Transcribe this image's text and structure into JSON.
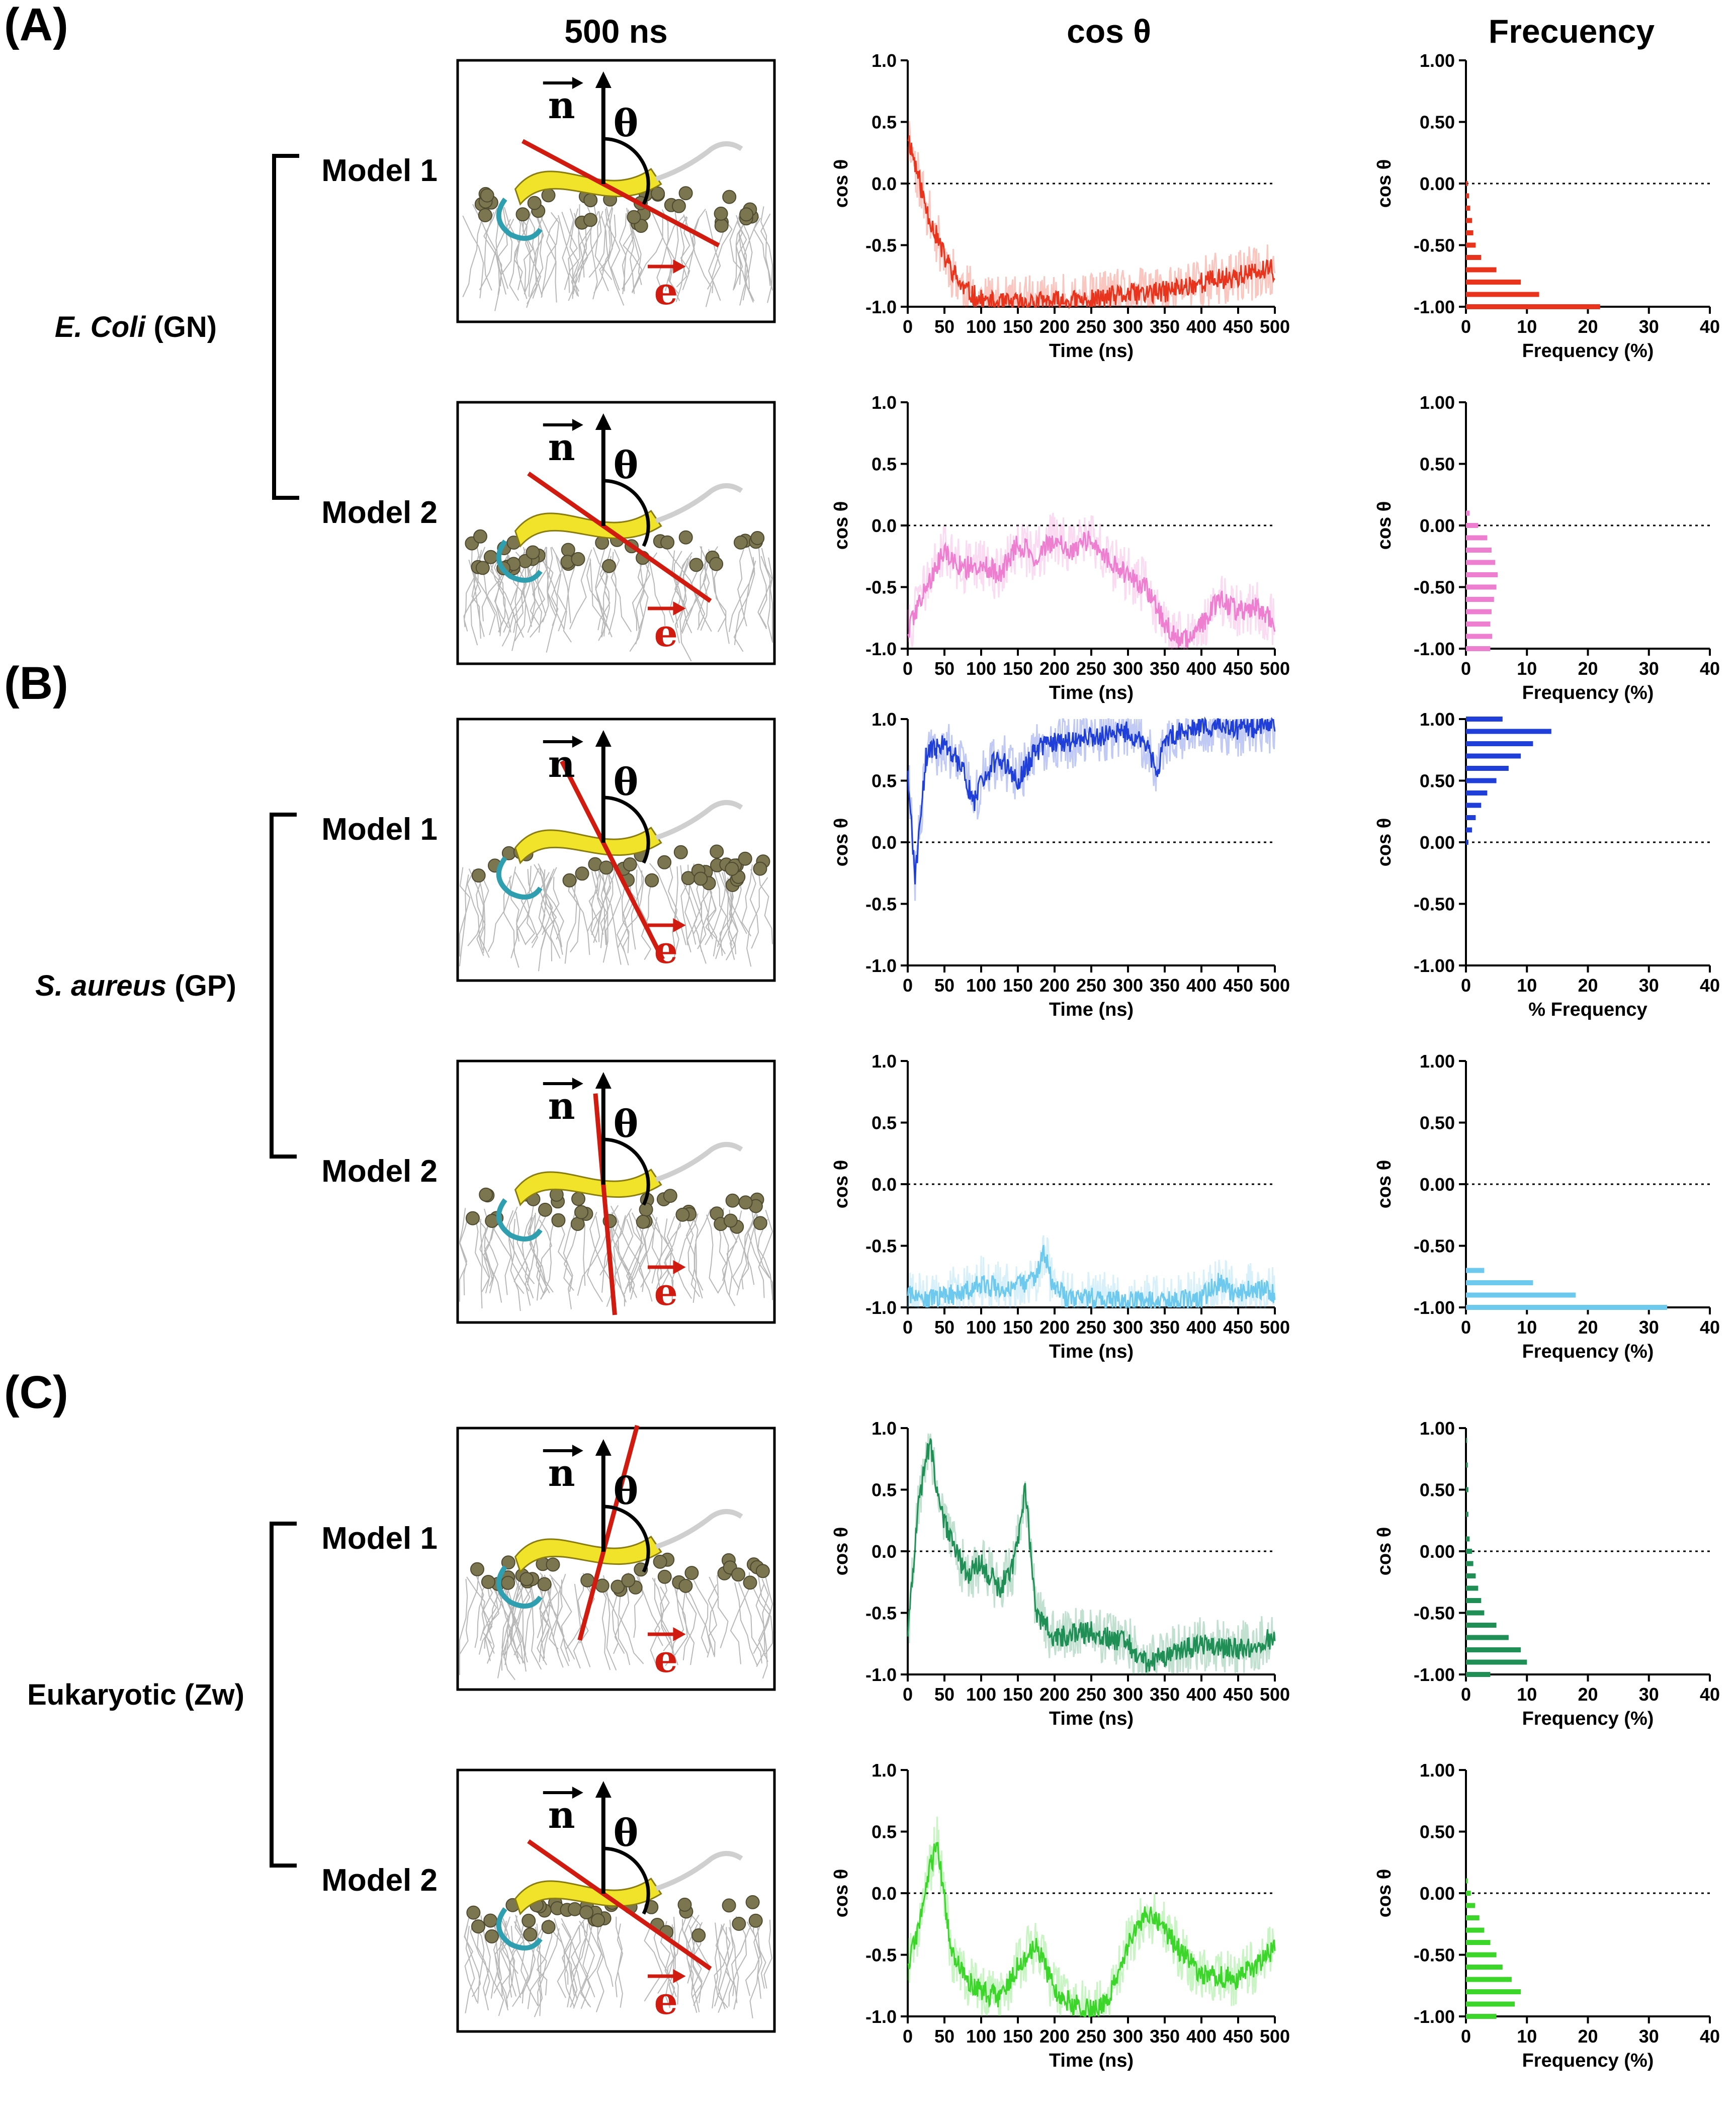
{
  "figure": {
    "column_titles": [
      "500 ns",
      "cos θ",
      "Frecuency"
    ],
    "symbols": {
      "n": "n",
      "e": "e",
      "theta": "θ"
    },
    "colors": {
      "red": "#e8341c",
      "pink": "#ee7fd0",
      "blue": "#1f3fd8",
      "lightblue": "#6ec9ee",
      "darkgreen": "#1f8f55",
      "green": "#3cd62a"
    }
  },
  "sections": [
    {
      "label": "(A)",
      "organism": {
        "italic": "E. Coli",
        "rest": " (GN)",
        "full": "E. Coli (GN)"
      },
      "models": [
        {
          "name": "Model 1",
          "color": "#e8341c"
        },
        {
          "name": "Model 2",
          "color": "#ee7fd0"
        }
      ]
    },
    {
      "label": "(B)",
      "organism": {
        "italic": "S. aureus",
        "rest": " (GP)",
        "full": "S. aureus (GP)"
      },
      "models": [
        {
          "name": "Model 1",
          "color": "#1f3fd8"
        },
        {
          "name": "Model 2",
          "color": "#6ec9ee"
        }
      ]
    },
    {
      "label": "(C)",
      "organism": {
        "italic": "",
        "rest": "Eukaryotic (Zw)",
        "full": "Eukaryotic (Zw)"
      },
      "models": [
        {
          "name": "Model 1",
          "color": "#1f8f55"
        },
        {
          "name": "Model 2",
          "color": "#3cd62a"
        }
      ]
    }
  ],
  "chart_data": [
    {
      "type": "line",
      "panel": "A-Model1-time",
      "color": "#e8341c",
      "xlabel": "Time (ns)",
      "ylabel": "cos θ",
      "xlim": [
        0,
        500
      ],
      "ylim": [
        -1,
        1
      ],
      "xticks": [
        0,
        50,
        100,
        150,
        200,
        250,
        300,
        350,
        400,
        450,
        500
      ],
      "yticks": [
        "1.0",
        "0.5",
        "0.0",
        "-0.5",
        "-1.0"
      ],
      "reference_line": 0,
      "x": [
        0,
        25,
        50,
        75,
        100,
        125,
        150,
        200,
        250,
        300,
        350,
        400,
        450,
        500
      ],
      "y": [
        0.4,
        -0.2,
        -0.6,
        -0.85,
        -0.95,
        -0.98,
        -0.97,
        -0.96,
        -0.95,
        -0.9,
        -0.88,
        -0.8,
        -0.75,
        -0.7
      ]
    },
    {
      "type": "bar",
      "orientation": "horizontal",
      "panel": "A-Model1-freq",
      "color": "#e8341c",
      "xlabel": "Frequency (%)",
      "ylabel": "cos θ",
      "xlim": [
        0,
        40
      ],
      "ylim": [
        -1,
        1
      ],
      "xticks": [
        0,
        10,
        20,
        30,
        40
      ],
      "yticks": [
        "1.00",
        "0.50",
        "0.00",
        "-0.50",
        "-1.00"
      ],
      "reference_line": 0,
      "categories": [
        0.0,
        -0.1,
        -0.2,
        -0.3,
        -0.4,
        -0.5,
        -0.6,
        -0.7,
        -0.8,
        -0.9,
        -1.0
      ],
      "values": [
        0.3,
        0.5,
        0.7,
        1.0,
        1.2,
        1.6,
        2.5,
        5,
        9,
        12,
        22
      ]
    },
    {
      "type": "line",
      "panel": "A-Model2-time",
      "color": "#ee7fd0",
      "xlabel": "Time (ns)",
      "ylabel": "cos θ",
      "xlim": [
        0,
        500
      ],
      "ylim": [
        -1,
        1
      ],
      "xticks": [
        0,
        50,
        100,
        150,
        200,
        250,
        300,
        350,
        400,
        450,
        500
      ],
      "yticks": [
        "1.0",
        "0.5",
        "0.0",
        "-0.5",
        "-1.0"
      ],
      "reference_line": 0,
      "x": [
        0,
        25,
        50,
        75,
        100,
        125,
        150,
        175,
        200,
        225,
        250,
        275,
        300,
        325,
        350,
        375,
        400,
        425,
        450,
        475,
        500
      ],
      "y": [
        -0.85,
        -0.5,
        -0.2,
        -0.35,
        -0.3,
        -0.4,
        -0.15,
        -0.25,
        -0.1,
        -0.2,
        -0.1,
        -0.3,
        -0.4,
        -0.5,
        -0.8,
        -0.95,
        -0.8,
        -0.6,
        -0.7,
        -0.65,
        -0.8
      ]
    },
    {
      "type": "bar",
      "orientation": "horizontal",
      "panel": "A-Model2-freq",
      "color": "#ee7fd0",
      "xlabel": "Frequency (%)",
      "ylabel": "cos θ",
      "xlim": [
        0,
        40
      ],
      "ylim": [
        -1,
        1
      ],
      "xticks": [
        0,
        10,
        20,
        30,
        40
      ],
      "yticks": [
        "1.00",
        "0.50",
        "0.00",
        "-0.50",
        "-1.00"
      ],
      "reference_line": 0,
      "categories": [
        0.1,
        0.0,
        -0.1,
        -0.2,
        -0.3,
        -0.4,
        -0.5,
        -0.6,
        -0.7,
        -0.8,
        -0.9,
        -1.0
      ],
      "values": [
        0.6,
        2,
        3.5,
        4.2,
        4.8,
        5.2,
        5,
        4.6,
        4.2,
        4,
        4.3,
        4
      ]
    },
    {
      "type": "line",
      "panel": "B-Model1-time",
      "color": "#1f3fd8",
      "xlabel": "Time (ns)",
      "ylabel": "cos θ",
      "xlim": [
        0,
        500
      ],
      "ylim": [
        -1,
        1
      ],
      "xticks": [
        0,
        50,
        100,
        150,
        200,
        250,
        300,
        350,
        400,
        450,
        500
      ],
      "yticks": [
        "1.0",
        "0.5",
        "0.0",
        "-0.5",
        "-1.0"
      ],
      "reference_line": 0,
      "x": [
        0,
        10,
        25,
        50,
        75,
        90,
        100,
        125,
        150,
        175,
        200,
        250,
        300,
        325,
        340,
        350,
        375,
        400,
        450,
        500
      ],
      "y": [
        0.6,
        -0.3,
        0.7,
        0.8,
        0.6,
        0.3,
        0.5,
        0.7,
        0.5,
        0.75,
        0.8,
        0.85,
        0.9,
        0.8,
        0.55,
        0.85,
        0.9,
        0.95,
        0.92,
        0.95
      ]
    },
    {
      "type": "bar",
      "orientation": "horizontal",
      "panel": "B-Model1-freq",
      "color": "#1f3fd8",
      "xlabel": "% Frequency",
      "ylabel": "cos θ",
      "xlim": [
        0,
        40
      ],
      "ylim": [
        -1,
        1
      ],
      "xticks": [
        0,
        10,
        20,
        30,
        40
      ],
      "yticks": [
        "1.00",
        "0.50",
        "0.00",
        "-0.50",
        "-1.00"
      ],
      "reference_line": 0,
      "categories": [
        1.0,
        0.9,
        0.8,
        0.7,
        0.6,
        0.5,
        0.4,
        0.3,
        0.2,
        0.1,
        0.0
      ],
      "values": [
        6,
        14,
        11,
        9,
        7,
        5,
        3.5,
        2.5,
        1.6,
        1,
        0.4
      ]
    },
    {
      "type": "line",
      "panel": "B-Model2-time",
      "color": "#6ec9ee",
      "xlabel": "Time (ns)",
      "ylabel": "cos θ",
      "xlim": [
        0,
        500
      ],
      "ylim": [
        -1,
        1
      ],
      "xticks": [
        0,
        50,
        100,
        150,
        200,
        250,
        300,
        350,
        400,
        450,
        500
      ],
      "yticks": [
        "1.0",
        "0.5",
        "0.0",
        "-0.5",
        "-1.0"
      ],
      "reference_line": 0,
      "x": [
        0,
        25,
        50,
        75,
        100,
        125,
        150,
        175,
        185,
        200,
        225,
        250,
        300,
        350,
        400,
        425,
        450,
        475,
        500
      ],
      "y": [
        -0.9,
        -0.95,
        -0.9,
        -0.88,
        -0.8,
        -0.85,
        -0.82,
        -0.75,
        -0.55,
        -0.85,
        -0.95,
        -0.93,
        -0.95,
        -0.96,
        -0.92,
        -0.8,
        -0.9,
        -0.85,
        -0.9
      ]
    },
    {
      "type": "bar",
      "orientation": "horizontal",
      "panel": "B-Model2-freq",
      "color": "#6ec9ee",
      "xlabel": "Frequency (%)",
      "ylabel": "cos θ",
      "xlim": [
        0,
        40
      ],
      "ylim": [
        -1,
        1
      ],
      "xticks": [
        0,
        10,
        20,
        30,
        40
      ],
      "yticks": [
        "1.00",
        "0.50",
        "0.00",
        "-0.50",
        "-1.00"
      ],
      "reference_line": 0,
      "categories": [
        -0.7,
        -0.8,
        -0.9,
        -1.0
      ],
      "values": [
        3,
        11,
        18,
        33
      ]
    },
    {
      "type": "line",
      "panel": "C-Model1-time",
      "color": "#1f8f55",
      "xlabel": "Time (ns)",
      "ylabel": "cos θ",
      "xlim": [
        0,
        500
      ],
      "ylim": [
        -1,
        1
      ],
      "xticks": [
        0,
        50,
        100,
        150,
        200,
        250,
        300,
        350,
        400,
        450,
        500
      ],
      "yticks": [
        "1.0",
        "0.5",
        "0.0",
        "-0.5",
        "-1.0"
      ],
      "reference_line": 0,
      "x": [
        0,
        15,
        30,
        45,
        60,
        80,
        100,
        125,
        145,
        160,
        175,
        200,
        250,
        300,
        325,
        350,
        375,
        400,
        450,
        500
      ],
      "y": [
        -0.7,
        0.4,
        0.9,
        0.3,
        0.1,
        -0.2,
        -0.1,
        -0.3,
        -0.1,
        0.5,
        -0.5,
        -0.7,
        -0.65,
        -0.75,
        -0.9,
        -0.85,
        -0.8,
        -0.75,
        -0.8,
        -0.7
      ]
    },
    {
      "type": "bar",
      "orientation": "horizontal",
      "panel": "C-Model1-freq",
      "color": "#1f8f55",
      "xlabel": "Frequency (%)",
      "ylabel": "cos θ",
      "xlim": [
        0,
        40
      ],
      "ylim": [
        -1,
        1
      ],
      "xticks": [
        0,
        10,
        20,
        30,
        40
      ],
      "yticks": [
        "1.00",
        "0.50",
        "0.00",
        "-0.50",
        "-1.00"
      ],
      "reference_line": 0,
      "categories": [
        0.9,
        0.7,
        0.5,
        0.3,
        0.1,
        0.0,
        -0.1,
        -0.2,
        -0.3,
        -0.4,
        -0.5,
        -0.6,
        -0.7,
        -0.8,
        -0.9,
        -1.0
      ],
      "values": [
        0.2,
        0.3,
        0.4,
        0.4,
        0.6,
        1,
        1.2,
        1.6,
        2,
        2.5,
        3,
        5,
        7,
        9,
        10,
        4
      ]
    },
    {
      "type": "line",
      "panel": "C-Model2-time",
      "color": "#3cd62a",
      "xlabel": "Time (ns)",
      "ylabel": "cos θ",
      "xlim": [
        0,
        500
      ],
      "ylim": [
        -1,
        1
      ],
      "xticks": [
        0,
        50,
        100,
        150,
        200,
        250,
        300,
        350,
        400,
        450,
        500
      ],
      "yticks": [
        "1.0",
        "0.5",
        "0.0",
        "-0.5",
        "-1.0"
      ],
      "reference_line": 0,
      "x": [
        0,
        15,
        30,
        40,
        60,
        80,
        100,
        125,
        150,
        175,
        200,
        225,
        250,
        275,
        300,
        325,
        350,
        375,
        400,
        450,
        500
      ],
      "y": [
        -0.6,
        -0.3,
        0.2,
        0.4,
        -0.5,
        -0.7,
        -0.8,
        -0.85,
        -0.6,
        -0.4,
        -0.8,
        -0.9,
        -0.95,
        -0.85,
        -0.4,
        -0.15,
        -0.3,
        -0.5,
        -0.65,
        -0.7,
        -0.45
      ]
    },
    {
      "type": "bar",
      "orientation": "horizontal",
      "panel": "C-Model2-freq",
      "color": "#3cd62a",
      "xlabel": "Frequency (%)",
      "ylabel": "cos θ",
      "xlim": [
        0,
        40
      ],
      "ylim": [
        -1,
        1
      ],
      "xticks": [
        0,
        10,
        20,
        30,
        40
      ],
      "yticks": [
        "1.00",
        "0.50",
        "0.00",
        "-0.50",
        "-1.00"
      ],
      "reference_line": 0,
      "categories": [
        0.1,
        0.0,
        -0.1,
        -0.2,
        -0.3,
        -0.4,
        -0.5,
        -0.6,
        -0.7,
        -0.8,
        -0.9,
        -1.0
      ],
      "values": [
        0.3,
        0.8,
        1.5,
        2.2,
        3,
        4,
        5,
        6,
        7.5,
        9,
        8,
        5
      ]
    }
  ]
}
